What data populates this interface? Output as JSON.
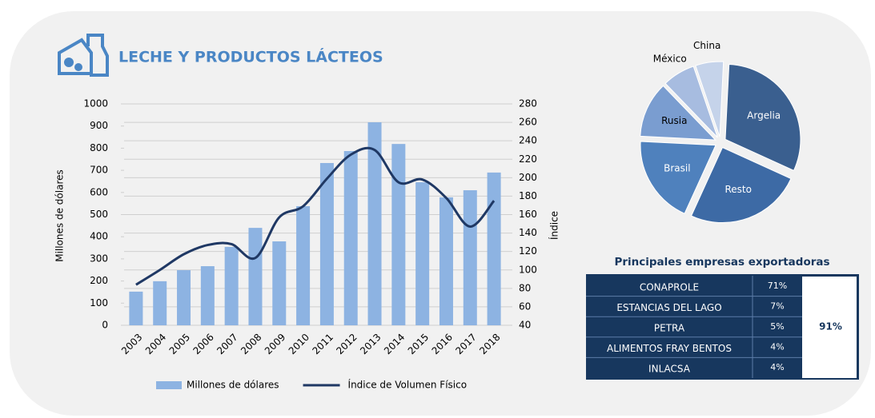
{
  "title": "LECHE Y PRODUCTOS LÁCTEOS",
  "chart_data": [
    {
      "type": "bar",
      "categories": [
        "2003",
        "2004",
        "2005",
        "2006",
        "2007",
        "2008",
        "2009",
        "2010",
        "2011",
        "2012",
        "2013",
        "2014",
        "2015",
        "2016",
        "2017",
        "2018"
      ],
      "series": [
        {
          "name": "Millones de dólares",
          "type": "bar",
          "color": "#8db3e2",
          "values": [
            152,
            199,
            249,
            267,
            354,
            440,
            379,
            538,
            733,
            787,
            917,
            819,
            646,
            578,
            610,
            690
          ]
        },
        {
          "name": "Índice de Volumen Físico",
          "type": "line",
          "axis": "y2",
          "color": "#1f3864",
          "values": [
            84,
            100,
            117,
            127,
            128,
            113,
            157,
            169,
            199,
            225,
            230,
            195,
            198,
            178,
            147,
            175
          ]
        }
      ],
      "y_label": "Millones de dólares",
      "y2_label": "Índice",
      "ylim": [
        0,
        1000
      ],
      "yticks": [
        0,
        100,
        200,
        300,
        400,
        500,
        600,
        700,
        800,
        900,
        1000
      ],
      "y2lim": [
        40,
        280
      ],
      "y2ticks": [
        40,
        60,
        80,
        100,
        120,
        140,
        160,
        180,
        200,
        220,
        240,
        260,
        280
      ],
      "grid": true,
      "legend": "bottom"
    },
    {
      "type": "pie",
      "categories": [
        "Argelia",
        "Resto",
        "Brasil",
        "Rusia",
        "México",
        "China"
      ],
      "values": [
        31,
        25,
        19,
        12,
        7,
        6
      ],
      "colors": [
        "#3a5f8f",
        "#3d6aa5",
        "#4f81bd",
        "#7a9dd0",
        "#a7bce0",
        "#c5d3ea"
      ]
    }
  ],
  "table": {
    "title": "Principales empresas exportadoras",
    "rows": [
      [
        "CONAPROLE",
        "71%"
      ],
      [
        "ESTANCIAS DEL LAGO",
        "7%"
      ],
      [
        "PETRA",
        "5%"
      ],
      [
        "ALIMENTOS FRAY BENTOS",
        "4%"
      ],
      [
        "INLACSA",
        "4%"
      ]
    ],
    "total": "91%"
  }
}
